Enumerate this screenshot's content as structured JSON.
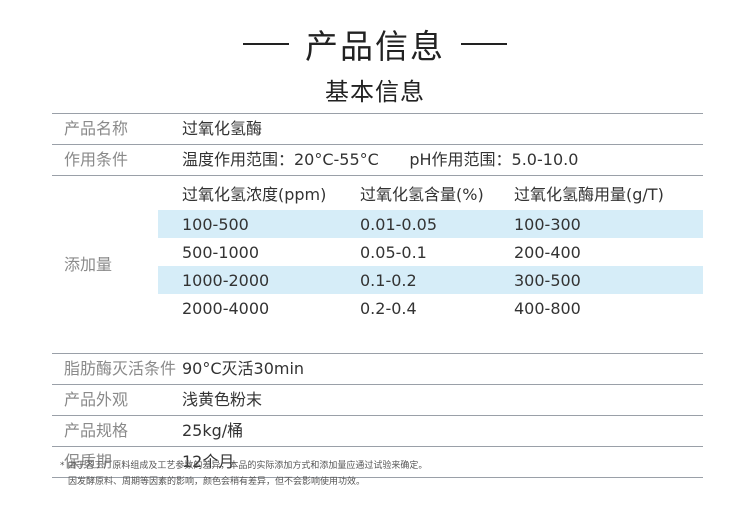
{
  "header": {
    "title": "产品信息",
    "subtitle": "基本信息"
  },
  "rows_top": [
    {
      "label": "产品名称",
      "value": "过氧化氢酶"
    },
    {
      "label": "作用条件",
      "value": "温度作用范围：20°C-55°C      pH作用范围：5.0-10.0"
    }
  ],
  "dosage": {
    "label": "添加量",
    "headers": [
      "过氧化氢浓度(ppm)",
      "过氧化氢含量(%)",
      "过氧化氢酶用量(g/T)"
    ],
    "rows": [
      [
        "100-500",
        "0.01-0.05",
        "100-300"
      ],
      [
        "500-1000",
        "0.05-0.1",
        "200-400"
      ],
      [
        "1000-2000",
        "0.1-0.2",
        "300-500"
      ],
      [
        "2000-4000",
        "0.2-0.4",
        "400-800"
      ]
    ]
  },
  "rows_bottom": [
    {
      "label": "脂肪酶灭活条件",
      "value": "90°C灭活30min"
    },
    {
      "label": "产品外观",
      "value": "浅黄色粉末"
    },
    {
      "label": "产品规格",
      "value": "25kg/桶"
    },
    {
      "label": "保质期",
      "value": "12个月"
    }
  ],
  "notes": [
    "* 由于各工厂原料组成及工艺参数的差异，本品的实际添加方式和添加量应通过试验来确定。",
    "因发酵原料、周期等因素的影响，颜色会稍有差异，但不会影响使用功效。"
  ],
  "colors": {
    "tint_row": "#d6edf8",
    "line": "#9aa0a8"
  }
}
